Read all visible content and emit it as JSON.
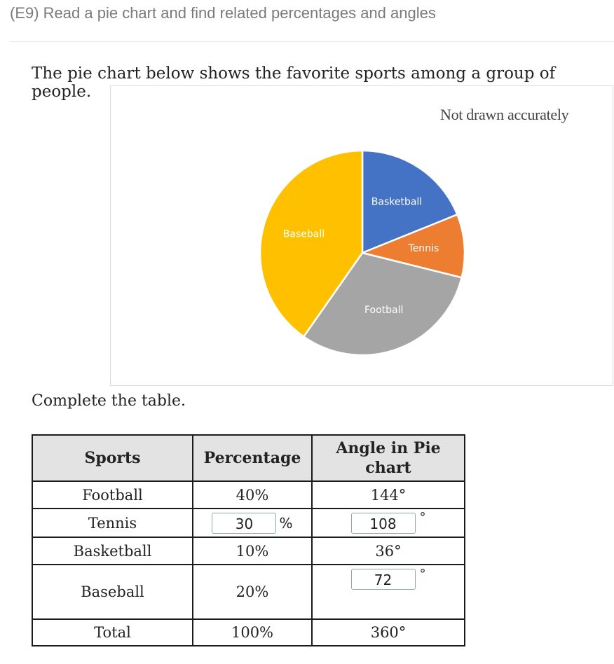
{
  "header": {
    "title": "(E9) Read a pie chart and find related percentages and angles"
  },
  "question": {
    "prompt": "The pie chart below shows the favorite sports among a group of people.",
    "note": "Not drawn accurately",
    "instruction": "Complete the table."
  },
  "chart_data": {
    "type": "pie",
    "slices": [
      {
        "label": "Basketball",
        "angle_deg": 68,
        "color": "#4472c4"
      },
      {
        "label": "Tennis",
        "angle_deg": 36,
        "color": "#ed7d31"
      },
      {
        "label": "Football",
        "angle_deg": 111,
        "color": "#a5a5a5"
      },
      {
        "label": "Baseball",
        "angle_deg": 145,
        "color": "#ffc000"
      }
    ]
  },
  "table": {
    "headers": [
      "Sports",
      "Percentage",
      "Angle in Pie chart"
    ],
    "rows": [
      {
        "sport": "Football",
        "percentage": "40%",
        "angle": "144°"
      },
      {
        "sport": "Tennis",
        "percentage_input": "30",
        "percentage_unit": "%",
        "angle_input": "108",
        "angle_unit": "°"
      },
      {
        "sport": "Basketball",
        "percentage": "10%",
        "angle": "36°"
      },
      {
        "sport": "Baseball",
        "percentage": "20%",
        "angle_input": "72",
        "angle_unit": "°"
      },
      {
        "sport": "Total",
        "percentage": "100%",
        "angle": "360°"
      }
    ]
  }
}
